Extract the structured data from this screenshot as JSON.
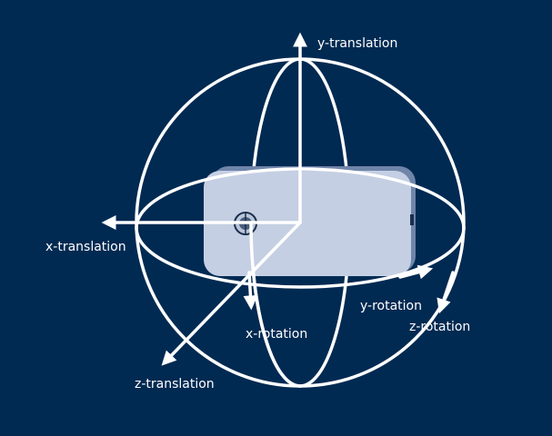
{
  "colors": {
    "background": "#002a52",
    "lines": "#ffffff",
    "phone_body": "#c5cfe3",
    "phone_side": "#6f85a9",
    "camera_outer": "#b9c5da"
  },
  "labels": {
    "y_translation": "y-translation",
    "x_translation": "x-translation",
    "z_translation": "z-translation",
    "x_rotation": "x-rotation",
    "y_rotation": "y-rotation",
    "z_rotation": "z-rotation"
  }
}
